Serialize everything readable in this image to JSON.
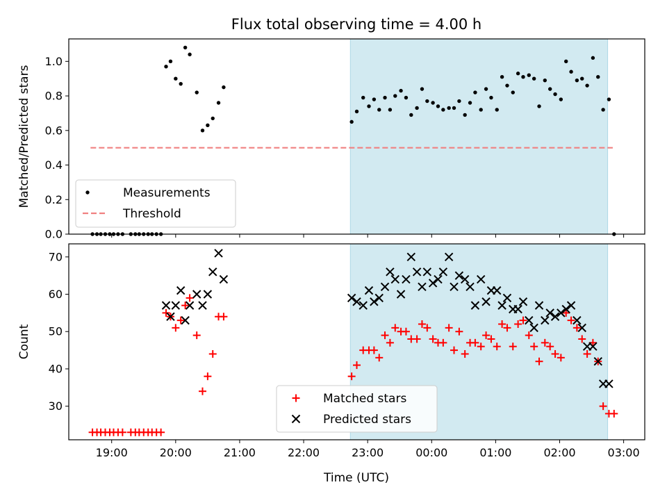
{
  "chart_data": {
    "title": "Flux total observing time = 4.00 h",
    "xlabel": "Time (UTC)",
    "x_ticks": [
      "19:00",
      "20:00",
      "21:00",
      "22:00",
      "23:00",
      "00:00",
      "01:00",
      "02:00",
      "03:00"
    ],
    "x_tick_hours": [
      19,
      20,
      21,
      22,
      23,
      24,
      25,
      26,
      27
    ],
    "xlim_hours": [
      18.33,
      27.33
    ],
    "shaded_span_hours": [
      22.73,
      26.75
    ],
    "shade_color": "#add8e6",
    "panels": [
      {
        "type": "scatter",
        "ylabel": "Matched/Predicted stars",
        "ylim": [
          0,
          1.13
        ],
        "y_ticks": [
          0.0,
          0.2,
          0.4,
          0.6,
          0.8,
          1.0
        ],
        "y_tick_labels": [
          "0.0",
          "0.2",
          "0.4",
          "0.6",
          "0.8",
          "1.0"
        ],
        "threshold": {
          "name": "Threshold",
          "value": 0.5,
          "x_range": [
            18.67,
            26.83
          ],
          "color": "#f08080"
        },
        "legend": {
          "position": "lower-left",
          "entries": [
            "Measurements",
            "Threshold"
          ]
        },
        "series": [
          {
            "name": "Measurements",
            "marker": "dot",
            "color": "#000000",
            "x": [
              18.7,
              18.77,
              18.83,
              18.9,
              18.97,
              19.03,
              19.1,
              19.17,
              19.3,
              19.37,
              19.43,
              19.5,
              19.57,
              19.63,
              19.7,
              19.77,
              19.85,
              19.92,
              20.0,
              20.08,
              20.15,
              20.22,
              20.33,
              20.42,
              20.5,
              20.58,
              20.67,
              20.75,
              22.75,
              22.83,
              22.93,
              23.02,
              23.1,
              23.18,
              23.27,
              23.35,
              23.43,
              23.52,
              23.6,
              23.68,
              23.77,
              23.85,
              23.93,
              24.02,
              24.1,
              24.18,
              24.27,
              24.35,
              24.43,
              24.52,
              24.6,
              24.68,
              24.77,
              24.85,
              24.93,
              25.02,
              25.1,
              25.18,
              25.27,
              25.35,
              25.43,
              25.52,
              25.6,
              25.68,
              25.77,
              25.85,
              25.93,
              26.02,
              26.1,
              26.18,
              26.27,
              26.35,
              26.43,
              26.52,
              26.6,
              26.68,
              26.77,
              26.85
            ],
            "y": [
              0,
              0,
              0,
              0,
              0,
              0,
              0,
              0,
              0,
              0,
              0,
              0,
              0,
              0,
              0,
              0,
              0.97,
              1.0,
              0.9,
              0.87,
              1.08,
              1.04,
              0.82,
              0.6,
              0.63,
              0.67,
              0.76,
              0.85,
              0.65,
              0.71,
              0.79,
              0.74,
              0.78,
              0.72,
              0.79,
              0.72,
              0.8,
              0.83,
              0.79,
              0.69,
              0.73,
              0.84,
              0.77,
              0.76,
              0.74,
              0.72,
              0.73,
              0.73,
              0.77,
              0.69,
              0.76,
              0.82,
              0.72,
              0.84,
              0.79,
              0.72,
              0.91,
              0.86,
              0.82,
              0.93,
              0.91,
              0.92,
              0.9,
              0.74,
              0.89,
              0.84,
              0.81,
              0.78,
              1.0,
              0.94,
              0.89,
              0.9,
              0.86,
              1.02,
              0.91,
              0.72,
              0.78,
              0
            ]
          }
        ]
      },
      {
        "type": "scatter",
        "ylabel": "Count",
        "ylim": [
          21,
          73.5
        ],
        "y_ticks": [
          30,
          40,
          50,
          60,
          70
        ],
        "y_tick_labels": [
          "30",
          "40",
          "50",
          "60",
          "70"
        ],
        "legend": {
          "position": "lower-center",
          "entries": [
            "Matched stars",
            "Predicted stars"
          ]
        },
        "series": [
          {
            "name": "Matched stars",
            "marker": "plus",
            "color": "#ff0000",
            "x": [
              18.7,
              18.77,
              18.83,
              18.9,
              18.97,
              19.03,
              19.1,
              19.17,
              19.3,
              19.37,
              19.43,
              19.5,
              19.57,
              19.63,
              19.7,
              19.77,
              19.85,
              19.92,
              20.0,
              20.08,
              20.15,
              20.22,
              20.33,
              20.42,
              20.5,
              20.58,
              20.67,
              20.75,
              22.75,
              22.83,
              22.93,
              23.02,
              23.1,
              23.18,
              23.27,
              23.35,
              23.43,
              23.52,
              23.6,
              23.68,
              23.77,
              23.85,
              23.93,
              24.02,
              24.1,
              24.18,
              24.27,
              24.35,
              24.43,
              24.52,
              24.6,
              24.68,
              24.77,
              24.85,
              24.93,
              25.02,
              25.1,
              25.18,
              25.27,
              25.35,
              25.43,
              25.52,
              25.6,
              25.68,
              25.77,
              25.85,
              25.93,
              26.02,
              26.1,
              26.18,
              26.27,
              26.35,
              26.43,
              26.52,
              26.6,
              26.68,
              26.77,
              26.85
            ],
            "y": [
              23,
              23,
              23,
              23,
              23,
              23,
              23,
              23,
              23,
              23,
              23,
              23,
              23,
              23,
              23,
              23,
              55,
              54,
              51,
              53,
              57,
              59,
              49,
              34,
              38,
              44,
              54,
              54,
              38,
              41,
              45,
              45,
              45,
              43,
              49,
              47,
              51,
              50,
              50,
              48,
              48,
              52,
              51,
              48,
              47,
              47,
              51,
              45,
              50,
              44,
              47,
              47,
              46,
              49,
              48,
              46,
              52,
              51,
              46,
              52,
              53,
              49,
              46,
              42,
              47,
              46,
              44,
              43,
              55,
              53,
              51,
              48,
              44,
              47,
              42,
              30,
              28,
              28
            ]
          },
          {
            "name": "Predicted stars",
            "marker": "x",
            "color": "#000000",
            "x": [
              19.85,
              19.92,
              20.0,
              20.08,
              20.15,
              20.22,
              20.33,
              20.42,
              20.5,
              20.58,
              20.67,
              20.75,
              22.75,
              22.83,
              22.93,
              23.02,
              23.1,
              23.18,
              23.27,
              23.35,
              23.43,
              23.52,
              23.6,
              23.68,
              23.77,
              23.85,
              23.93,
              24.02,
              24.1,
              24.18,
              24.27,
              24.35,
              24.43,
              24.52,
              24.6,
              24.68,
              24.77,
              24.85,
              24.93,
              25.02,
              25.1,
              25.18,
              25.27,
              25.35,
              25.43,
              25.52,
              25.6,
              25.68,
              25.77,
              25.85,
              25.93,
              26.02,
              26.1,
              26.18,
              26.27,
              26.35,
              26.43,
              26.52,
              26.6,
              26.68,
              26.77
            ],
            "y": [
              57,
              54,
              57,
              61,
              53,
              57,
              60,
              57,
              60,
              66,
              71,
              64,
              59,
              58,
              57,
              61,
              58,
              59,
              62,
              66,
              64,
              60,
              64,
              70,
              66,
              62,
              66,
              63,
              64,
              66,
              70,
              62,
              65,
              64,
              62,
              57,
              64,
              58,
              61,
              61,
              57,
              59,
              56,
              56,
              58,
              53,
              51,
              57,
              53,
              55,
              54,
              55,
              56,
              57,
              53,
              51,
              46,
              46,
              42,
              36,
              36
            ]
          }
        ]
      }
    ]
  }
}
